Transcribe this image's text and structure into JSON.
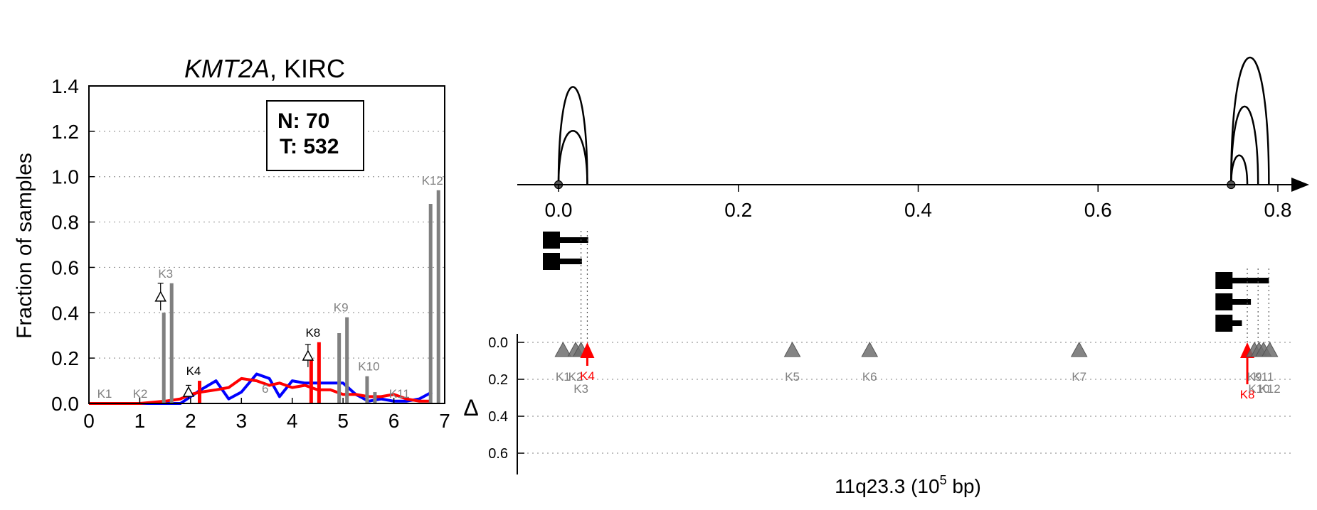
{
  "chart_data": [
    {
      "type": "bar",
      "title_gene": "KMT2A",
      "title_rest": ", KIRC",
      "ylabel": "Fraction of samples",
      "xlim": [
        0,
        7
      ],
      "ylim": [
        0,
        1.4
      ],
      "x_ticks": [
        "0",
        "1",
        "2",
        "3",
        "4",
        "5",
        "6",
        "7"
      ],
      "y_ticks": [
        "0.0",
        "0.2",
        "0.4",
        "0.6",
        "0.8",
        "1.0",
        "1.2",
        "1.4"
      ],
      "grid": "horizontal dotted",
      "stats_box": {
        "line1": "N: 70",
        "line2": "T: 532"
      },
      "bars": [
        {
          "label": "K1",
          "x": 0.35,
          "values": [
            0.0,
            0.0
          ],
          "color": "#808080",
          "label_color": "#808080"
        },
        {
          "label": "K2",
          "x": 1.05,
          "values": [
            0.0,
            0.0
          ],
          "color": "#808080",
          "label_color": "#808080"
        },
        {
          "label": "K3",
          "x": 1.55,
          "values": [
            0.4,
            0.53
          ],
          "color": "#808080",
          "label_color": "#808080",
          "delta": {
            "y": 0.47,
            "err": 0.06
          }
        },
        {
          "label": "K4",
          "x": 2.1,
          "values": [
            0.0,
            0.1
          ],
          "color": "#ff0000",
          "label_color": "#000000",
          "delta": {
            "y": 0.05,
            "err": 0.03
          }
        },
        {
          "label": "K8",
          "x": 4.45,
          "values": [
            0.2,
            0.27
          ],
          "color": "#ff0000",
          "label_color": "#000000",
          "delta": {
            "y": 0.21,
            "err": 0.05
          }
        },
        {
          "label": "K9",
          "x": 5.0,
          "values": [
            0.31,
            0.38
          ],
          "color": "#808080",
          "label_color": "#808080"
        },
        {
          "label": "K10",
          "x": 5.55,
          "values": [
            0.12,
            0.05
          ],
          "color": "#808080",
          "label_color": "#808080"
        },
        {
          "label": "K11",
          "x": 6.15,
          "values": [
            0.0,
            0.0
          ],
          "color": "#808080",
          "label_color": "#808080"
        },
        {
          "label": "K12",
          "x": 6.8,
          "values": [
            0.88,
            0.94
          ],
          "color": "#808080",
          "label_color": "#808080"
        }
      ],
      "hidden_labels": [
        {
          "label": "6",
          "x": 3.3,
          "y": 0.06
        }
      ],
      "series": [
        {
          "color": "#0000ff",
          "x": [
            0,
            0.5,
            1.0,
            1.5,
            1.8,
            2.0,
            2.2,
            2.5,
            2.75,
            3.0,
            3.3,
            3.55,
            3.75,
            4.0,
            4.25,
            4.5,
            4.75,
            5.0,
            5.25,
            5.5,
            5.75,
            6.0,
            6.25,
            6.5,
            6.75
          ],
          "y": [
            0,
            0,
            0,
            0,
            0,
            0.03,
            0.06,
            0.1,
            0.02,
            0.05,
            0.13,
            0.11,
            0.03,
            0.1,
            0.09,
            0.09,
            0.09,
            0.09,
            0.04,
            0.01,
            0.02,
            0.01,
            0.01,
            0.02,
            0.05
          ]
        },
        {
          "color": "#ff0000",
          "x": [
            0,
            0.5,
            1.0,
            1.5,
            1.8,
            2.0,
            2.2,
            2.5,
            2.75,
            3.0,
            3.3,
            3.55,
            3.75,
            4.0,
            4.25,
            4.5,
            4.75,
            5.0,
            5.25,
            5.5,
            5.75,
            6.0,
            6.25,
            6.5,
            6.75
          ],
          "y": [
            0,
            0,
            0,
            0.01,
            0.02,
            0.04,
            0.05,
            0.06,
            0.07,
            0.11,
            0.1,
            0.08,
            0.09,
            0.07,
            0.08,
            0.06,
            0.06,
            0.04,
            0.04,
            0.03,
            0.03,
            0.04,
            0.02,
            0.01,
            0.01
          ]
        }
      ]
    },
    {
      "type": "scatter",
      "xlabel_main": "11q23.3 (10",
      "xlabel_sup": "5",
      "xlabel_tail": " bp)",
      "ylabel": "Δ",
      "upper_axis": {
        "xlim": [
          0,
          0.84
        ],
        "ticks": [
          "0.0",
          "0.2",
          "0.4",
          "0.6",
          "0.8"
        ],
        "tick_values": [
          0,
          0.2,
          0.4,
          0.6,
          0.8
        ]
      },
      "lower_axis": {
        "ylim": [
          0,
          0.7
        ],
        "ticks": [
          "0.0",
          "0.2",
          "0.4",
          "0.6"
        ],
        "tick_values": [
          0,
          0.2,
          0.4,
          0.6
        ]
      },
      "arcs": [
        {
          "start": 0.0,
          "end": 0.032,
          "height": 1.0
        },
        {
          "start": 0.0,
          "end": 0.032,
          "height": 0.55
        },
        {
          "start": 0.748,
          "end": 0.79,
          "height": 1.3
        },
        {
          "start": 0.748,
          "end": 0.778,
          "height": 0.8
        },
        {
          "start": 0.748,
          "end": 0.766,
          "height": 0.3
        }
      ],
      "arc_origins": [
        0.0,
        0.748
      ],
      "transcripts": [
        {
          "start": 0.0,
          "end": 0.033,
          "row": 0
        },
        {
          "start": 0.0,
          "end": 0.026,
          "row": 1
        },
        {
          "start": 0.748,
          "end": 0.79,
          "row": 0
        },
        {
          "start": 0.748,
          "end": 0.77,
          "row": 1
        },
        {
          "start": 0.748,
          "end": 0.76,
          "row": 2
        }
      ],
      "dotted_guides": [
        0.025,
        0.032,
        0.766,
        0.778,
        0.79
      ],
      "markers": [
        {
          "label": "K1",
          "x": 0.005,
          "delta": 0.0,
          "color": "#6e6e6e",
          "kind": "triangle"
        },
        {
          "label": "K2",
          "x": 0.019,
          "delta": 0.0,
          "color": "#6e6e6e",
          "kind": "triangle"
        },
        {
          "label": "K3",
          "x": 0.025,
          "delta": 0.0,
          "color": "#6e6e6e",
          "kind": "triangle"
        },
        {
          "label": "K4",
          "x": 0.032,
          "delta": 0.05,
          "color": "#ff0000",
          "kind": "arrow"
        },
        {
          "label": "K5",
          "x": 0.26,
          "delta": 0.0,
          "color": "#6e6e6e",
          "kind": "triangle"
        },
        {
          "label": "K6",
          "x": 0.346,
          "delta": 0.0,
          "color": "#6e6e6e",
          "kind": "triangle"
        },
        {
          "label": "K7",
          "x": 0.579,
          "delta": 0.0,
          "color": "#6e6e6e",
          "kind": "triangle"
        },
        {
          "label": "K8",
          "x": 0.766,
          "delta": 0.15,
          "color": "#ff0000",
          "kind": "arrow"
        },
        {
          "label": "K9",
          "x": 0.774,
          "delta": 0.0,
          "color": "#6e6e6e",
          "kind": "triangle"
        },
        {
          "label": "K10",
          "x": 0.779,
          "delta": 0.0,
          "color": "#6e6e6e",
          "kind": "triangle"
        },
        {
          "label": "K11",
          "x": 0.784,
          "delta": 0.0,
          "color": "#6e6e6e",
          "kind": "triangle"
        },
        {
          "label": "K12",
          "x": 0.791,
          "delta": 0.0,
          "color": "#6e6e6e",
          "kind": "triangle"
        }
      ]
    }
  ]
}
